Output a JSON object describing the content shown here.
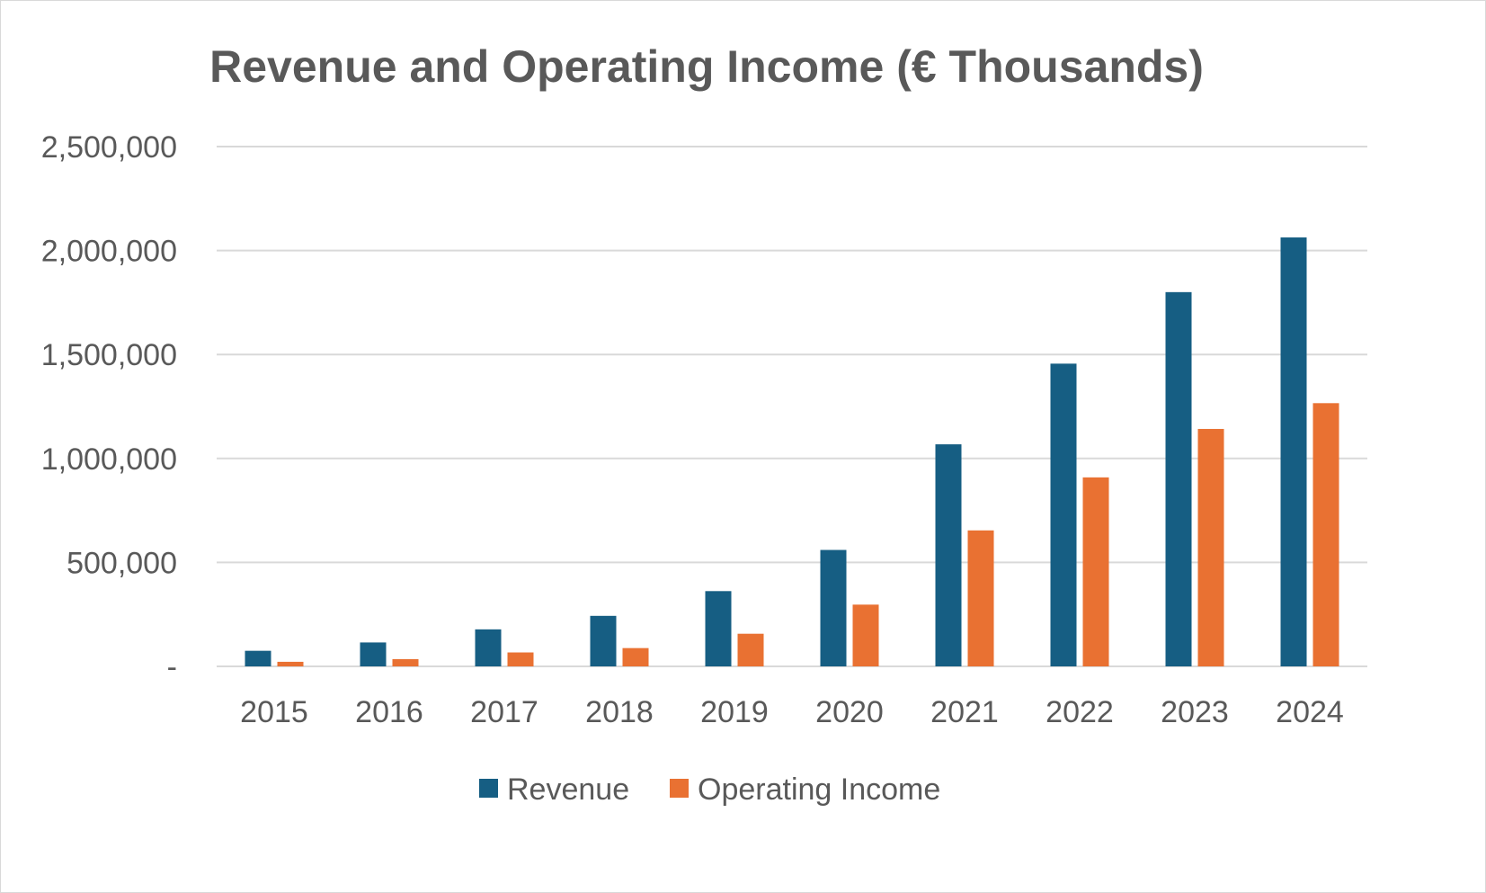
{
  "chart_data": {
    "type": "bar",
    "title": "Revenue and Operating Income (€ Thousands)",
    "xlabel": "",
    "ylabel": "",
    "categories": [
      "2015",
      "2016",
      "2017",
      "2018",
      "2019",
      "2020",
      "2021",
      "2022",
      "2023",
      "2024"
    ],
    "series": [
      {
        "name": "Revenue",
        "color": "#165e83",
        "values": [
          75000,
          115000,
          178000,
          243000,
          362000,
          560000,
          1068000,
          1456000,
          1800000,
          2063000
        ]
      },
      {
        "name": "Operating Income",
        "color": "#e97132",
        "values": [
          22000,
          35000,
          67000,
          88000,
          157000,
          297000,
          654000,
          909000,
          1142000,
          1266000
        ]
      }
    ],
    "ylim": [
      0,
      2500000
    ],
    "yticks": [
      0,
      500000,
      1000000,
      1500000,
      2000000,
      2500000
    ],
    "ytick_labels": [
      "-",
      "500,000",
      "1,000,000",
      "1,500,000",
      "2,000,000",
      "2,500,000"
    ],
    "grid": true,
    "gridline_color": "#d9d9d9",
    "legend_position": "bottom"
  }
}
